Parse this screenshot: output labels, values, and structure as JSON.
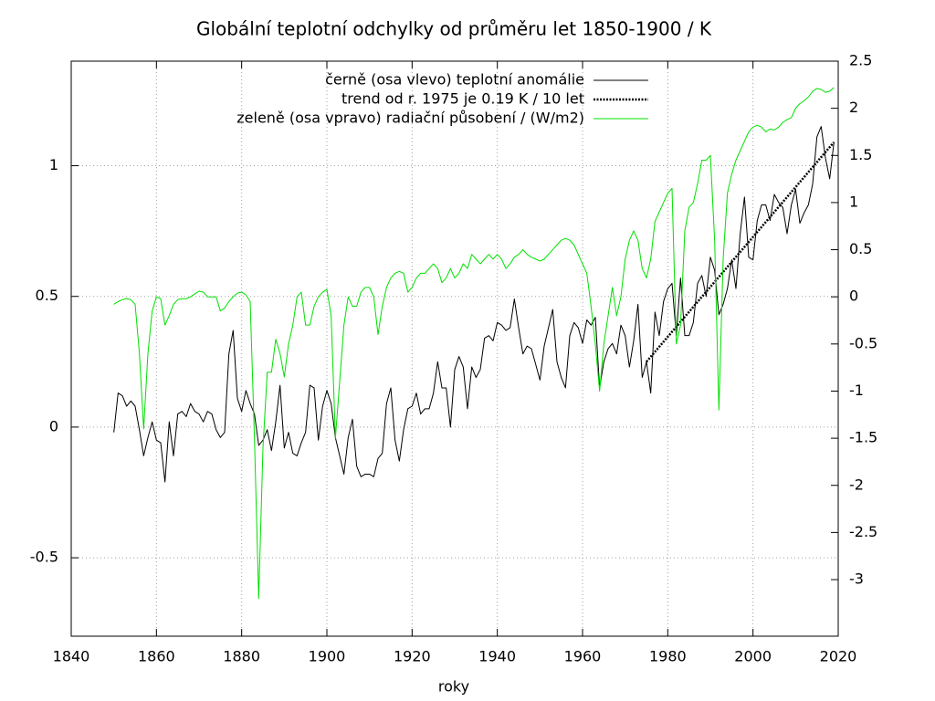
{
  "chart_data": {
    "type": "line",
    "title": "Globální teplotní odchylky od průměru let 1850-1900 / K",
    "xlabel": "roky",
    "xlim": [
      1840,
      2020
    ],
    "xticks": [
      1840,
      1860,
      1880,
      1900,
      1920,
      1940,
      1960,
      1980,
      2000,
      2020
    ],
    "ylim": [
      -0.8,
      1.4
    ],
    "yticks": [
      -0.5,
      0,
      0.5,
      1
    ],
    "y2lim": [
      -3.6,
      2.5
    ],
    "y2ticks": [
      -3,
      -2.5,
      -2,
      -1.5,
      -1,
      -0.5,
      0,
      0.5,
      1,
      1.5,
      2,
      2.5
    ],
    "grid": true,
    "legend": "top-right",
    "x": [
      1850,
      1851,
      1852,
      1853,
      1854,
      1855,
      1856,
      1857,
      1858,
      1859,
      1860,
      1861,
      1862,
      1863,
      1864,
      1865,
      1866,
      1867,
      1868,
      1869,
      1870,
      1871,
      1872,
      1873,
      1874,
      1875,
      1876,
      1877,
      1878,
      1879,
      1880,
      1881,
      1882,
      1883,
      1884,
      1885,
      1886,
      1887,
      1888,
      1889,
      1890,
      1891,
      1892,
      1893,
      1894,
      1895,
      1896,
      1897,
      1898,
      1899,
      1900,
      1901,
      1902,
      1903,
      1904,
      1905,
      1906,
      1907,
      1908,
      1909,
      1910,
      1911,
      1912,
      1913,
      1914,
      1915,
      1916,
      1917,
      1918,
      1919,
      1920,
      1921,
      1922,
      1923,
      1924,
      1925,
      1926,
      1927,
      1928,
      1929,
      1930,
      1931,
      1932,
      1933,
      1934,
      1935,
      1936,
      1937,
      1938,
      1939,
      1940,
      1941,
      1942,
      1943,
      1944,
      1945,
      1946,
      1947,
      1948,
      1949,
      1950,
      1951,
      1952,
      1953,
      1954,
      1955,
      1956,
      1957,
      1958,
      1959,
      1960,
      1961,
      1962,
      1963,
      1964,
      1965,
      1966,
      1967,
      1968,
      1969,
      1970,
      1971,
      1972,
      1973,
      1974,
      1975,
      1976,
      1977,
      1978,
      1979,
      1980,
      1981,
      1982,
      1983,
      1984,
      1985,
      1986,
      1987,
      1988,
      1989,
      1990,
      1991,
      1992,
      1993,
      1994,
      1995,
      1996,
      1997,
      1998,
      1999,
      2000,
      2001,
      2002,
      2003,
      2004,
      2005,
      2006,
      2007,
      2008,
      2009,
      2010,
      2011,
      2012,
      2013,
      2014,
      2015,
      2016,
      2017,
      2018,
      2019
    ],
    "series": [
      {
        "name": "černě (osa vlevo) teplotní anomálie",
        "color": "#000000",
        "style": "solid",
        "values": [
          -0.02,
          0.13,
          0.12,
          0.08,
          0.1,
          0.08,
          -0.01,
          -0.11,
          -0.04,
          0.02,
          -0.05,
          -0.06,
          -0.21,
          0.02,
          -0.11,
          0.05,
          0.06,
          0.04,
          0.09,
          0.06,
          0.05,
          0.02,
          0.06,
          0.05,
          -0.01,
          -0.04,
          -0.02,
          0.28,
          0.37,
          0.11,
          0.06,
          0.14,
          0.09,
          0.05,
          -0.07,
          -0.05,
          -0.01,
          -0.09,
          0.02,
          0.16,
          -0.08,
          -0.02,
          -0.1,
          -0.11,
          -0.06,
          -0.02,
          0.16,
          0.15,
          -0.05,
          0.08,
          0.14,
          0.09,
          -0.04,
          -0.11,
          -0.18,
          -0.04,
          0.03,
          -0.15,
          -0.19,
          -0.18,
          -0.18,
          -0.19,
          -0.12,
          -0.1,
          0.09,
          0.15,
          -0.05,
          -0.13,
          -0.01,
          0.07,
          0.08,
          0.13,
          0.05,
          0.07,
          0.07,
          0.13,
          0.25,
          0.15,
          0.15,
          0.0,
          0.22,
          0.27,
          0.23,
          0.07,
          0.23,
          0.19,
          0.22,
          0.34,
          0.35,
          0.33,
          0.4,
          0.39,
          0.37,
          0.38,
          0.49,
          0.38,
          0.28,
          0.31,
          0.3,
          0.24,
          0.18,
          0.31,
          0.38,
          0.45,
          0.25,
          0.19,
          0.15,
          0.35,
          0.4,
          0.38,
          0.32,
          0.41,
          0.39,
          0.42,
          0.15,
          0.25,
          0.3,
          0.32,
          0.28,
          0.39,
          0.35,
          0.23,
          0.33,
          0.47,
          0.19,
          0.25,
          0.13,
          0.44,
          0.35,
          0.48,
          0.53,
          0.55,
          0.35,
          0.57,
          0.35,
          0.35,
          0.4,
          0.55,
          0.58,
          0.5,
          0.65,
          0.6,
          0.43,
          0.47,
          0.53,
          0.64,
          0.53,
          0.74,
          0.88,
          0.65,
          0.64,
          0.79,
          0.85,
          0.85,
          0.79,
          0.89,
          0.86,
          0.84,
          0.74,
          0.85,
          0.91,
          0.78,
          0.82,
          0.85,
          0.93,
          1.11,
          1.15,
          1.03,
          0.95,
          1.09
        ]
      },
      {
        "name": "trend od r. 1975 je 0.19 K / 10 let",
        "color": "#000000",
        "style": "dotted",
        "x": [
          1975,
          2019
        ],
        "values": [
          0.25,
          1.09
        ]
      },
      {
        "name": "zeleně (osa vpravo) radiační působení / (W/m2)",
        "color": "#00e000",
        "style": "solid",
        "axis": "y2",
        "values": [
          -0.08,
          -0.05,
          -0.03,
          -0.02,
          -0.03,
          -0.08,
          -0.6,
          -1.4,
          -0.6,
          -0.15,
          0.0,
          -0.02,
          -0.3,
          -0.2,
          -0.08,
          -0.03,
          -0.02,
          -0.02,
          0.0,
          0.03,
          0.06,
          0.05,
          0.0,
          0.0,
          0.0,
          -0.15,
          -0.12,
          -0.05,
          0.0,
          0.04,
          0.05,
          0.02,
          -0.05,
          -1.5,
          -3.2,
          -1.6,
          -0.8,
          -0.8,
          -0.45,
          -0.6,
          -0.85,
          -0.5,
          -0.3,
          0.0,
          0.05,
          -0.3,
          -0.3,
          -0.1,
          0.0,
          0.05,
          0.08,
          -0.2,
          -1.5,
          -0.9,
          -0.3,
          0.0,
          -0.1,
          -0.1,
          0.05,
          0.1,
          0.1,
          0.0,
          -0.4,
          -0.1,
          0.1,
          0.2,
          0.25,
          0.27,
          0.25,
          0.05,
          0.1,
          0.2,
          0.25,
          0.25,
          0.3,
          0.35,
          0.3,
          0.15,
          0.2,
          0.3,
          0.2,
          0.25,
          0.35,
          0.3,
          0.45,
          0.4,
          0.35,
          0.4,
          0.45,
          0.4,
          0.45,
          0.4,
          0.3,
          0.35,
          0.42,
          0.45,
          0.5,
          0.45,
          0.42,
          0.4,
          0.38,
          0.4,
          0.45,
          0.5,
          0.55,
          0.6,
          0.62,
          0.6,
          0.55,
          0.45,
          0.35,
          0.25,
          -0.1,
          -0.5,
          -1.0,
          -0.5,
          -0.2,
          0.1,
          -0.2,
          0.0,
          0.4,
          0.6,
          0.7,
          0.6,
          0.3,
          0.2,
          0.4,
          0.8,
          0.9,
          1.0,
          1.1,
          1.15,
          -0.5,
          -0.3,
          0.7,
          0.95,
          1.0,
          1.2,
          1.45,
          1.45,
          1.5,
          0.6,
          -1.2,
          0.4,
          1.1,
          1.3,
          1.45,
          1.55,
          1.65,
          1.75,
          1.8,
          1.82,
          1.8,
          1.75,
          1.78,
          1.77,
          1.8,
          1.85,
          1.88,
          1.9,
          2.0,
          2.05,
          2.08,
          2.12,
          2.18,
          2.21,
          2.2,
          2.17,
          2.18,
          2.22
        ]
      }
    ]
  }
}
